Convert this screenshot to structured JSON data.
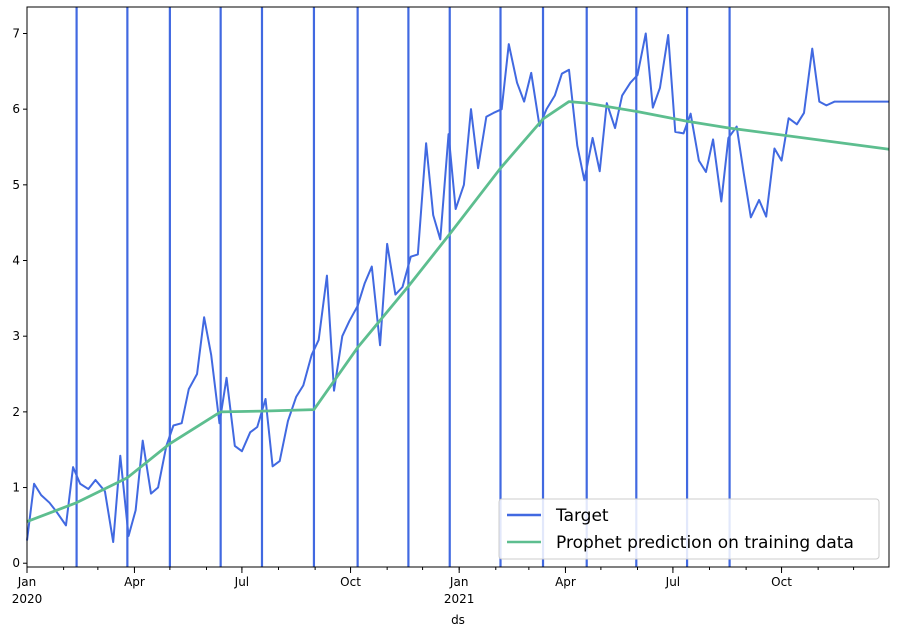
{
  "chart_data": {
    "type": "line",
    "xlabel": "ds",
    "ylabel": "",
    "xlim": [
      "2020-01-01",
      "2021-12-31"
    ],
    "ylim": [
      -0.05,
      7.35
    ],
    "grid": false,
    "legend_position": "bottom-right",
    "y_ticks": [
      0,
      1,
      2,
      3,
      4,
      5,
      6,
      7
    ],
    "x_ticks": [
      {
        "date": "2020-01-01",
        "label": "Jan",
        "sublabel": "2020"
      },
      {
        "date": "2020-04-01",
        "label": "Apr",
        "sublabel": ""
      },
      {
        "date": "2020-07-01",
        "label": "Jul",
        "sublabel": ""
      },
      {
        "date": "2020-10-01",
        "label": "Oct",
        "sublabel": ""
      },
      {
        "date": "2021-01-01",
        "label": "Jan",
        "sublabel": "2021"
      },
      {
        "date": "2021-04-01",
        "label": "Apr",
        "sublabel": ""
      },
      {
        "date": "2021-07-01",
        "label": "Jul",
        "sublabel": ""
      },
      {
        "date": "2021-10-01",
        "label": "Oct",
        "sublabel": ""
      }
    ],
    "changepoints": [
      "2020-02-12",
      "2020-03-26",
      "2020-05-01",
      "2020-06-13",
      "2020-07-18",
      "2020-08-31",
      "2020-10-07",
      "2020-11-19",
      "2020-12-24",
      "2021-02-05",
      "2021-03-13",
      "2021-04-19",
      "2021-05-31",
      "2021-07-13",
      "2021-08-18"
    ],
    "series": [
      {
        "name": "Target",
        "color": "#4169e1",
        "x": [
          "2020-01-01",
          "2020-01-07",
          "2020-01-13",
          "2020-01-20",
          "2020-01-26",
          "2020-02-03",
          "2020-02-09",
          "2020-02-15",
          "2020-02-22",
          "2020-02-28",
          "2020-03-07",
          "2020-03-14",
          "2020-03-20",
          "2020-03-27",
          "2020-04-02",
          "2020-04-08",
          "2020-04-15",
          "2020-04-21",
          "2020-04-28",
          "2020-05-04",
          "2020-05-11",
          "2020-05-17",
          "2020-05-24",
          "2020-05-30",
          "2020-06-05",
          "2020-06-12",
          "2020-06-18",
          "2020-06-25",
          "2020-07-01",
          "2020-07-08",
          "2020-07-14",
          "2020-07-21",
          "2020-07-27",
          "2020-08-02",
          "2020-08-09",
          "2020-08-16",
          "2020-08-22",
          "2020-08-29",
          "2020-09-04",
          "2020-09-11",
          "2020-09-17",
          "2020-09-24",
          "2020-09-30",
          "2020-10-07",
          "2020-10-13",
          "2020-10-19",
          "2020-10-26",
          "2020-11-01",
          "2020-11-08",
          "2020-11-14",
          "2020-11-21",
          "2020-11-27",
          "2020-12-04",
          "2020-12-10",
          "2020-12-16",
          "2020-12-23",
          "2020-12-29",
          "2021-01-05",
          "2021-01-11",
          "2021-01-17",
          "2021-01-24",
          "2021-01-30",
          "2021-02-06",
          "2021-02-12",
          "2021-02-19",
          "2021-02-25",
          "2021-03-03",
          "2021-03-10",
          "2021-03-16",
          "2021-03-23",
          "2021-03-29",
          "2021-04-04",
          "2021-04-11",
          "2021-04-17",
          "2021-04-24",
          "2021-04-30",
          "2021-05-06",
          "2021-05-13",
          "2021-05-19",
          "2021-05-26",
          "2021-06-01",
          "2021-06-08",
          "2021-06-14",
          "2021-06-20",
          "2021-06-27",
          "2021-07-03",
          "2021-07-10",
          "2021-07-16",
          "2021-07-23",
          "2021-07-29",
          "2021-08-04",
          "2021-08-11",
          "2021-08-17",
          "2021-08-24",
          "2021-08-30",
          "2021-09-05",
          "2021-09-12",
          "2021-09-18",
          "2021-09-25",
          "2021-10-01",
          "2021-10-07",
          "2021-10-14",
          "2021-10-20",
          "2021-10-27",
          "2021-11-02",
          "2021-11-08",
          "2021-11-15",
          "2021-11-21",
          "2021-11-28",
          "2021-12-04",
          "2021-12-10",
          "2021-12-17",
          "2021-12-23",
          "2021-12-31"
        ],
        "values": [
          0.3,
          1.05,
          0.9,
          0.8,
          0.68,
          0.5,
          1.27,
          1.05,
          0.98,
          1.1,
          0.95,
          0.28,
          1.42,
          0.36,
          0.7,
          1.62,
          0.92,
          1.0,
          1.55,
          1.82,
          1.85,
          2.3,
          2.5,
          3.25,
          2.75,
          1.85,
          2.45,
          1.55,
          1.48,
          1.73,
          1.8,
          2.17,
          1.28,
          1.35,
          1.88,
          2.2,
          2.35,
          2.75,
          2.95,
          3.8,
          2.28,
          3.0,
          3.2,
          3.4,
          3.7,
          3.92,
          2.88,
          4.22,
          3.55,
          3.65,
          4.05,
          4.08,
          5.55,
          4.6,
          4.28,
          5.67,
          4.68,
          5.0,
          6.0,
          5.22,
          5.9,
          5.95,
          6.0,
          6.86,
          6.35,
          6.1,
          6.48,
          5.78,
          6.0,
          6.18,
          6.47,
          6.52,
          5.52,
          5.06,
          5.62,
          5.18,
          6.08,
          5.75,
          6.18,
          6.35,
          6.45,
          7.0,
          6.02,
          6.28,
          6.98,
          5.7,
          5.68,
          5.94,
          5.32,
          5.17,
          5.6,
          4.78,
          5.62,
          5.77,
          5.15,
          4.57,
          4.8,
          4.58,
          5.48,
          5.32,
          5.88,
          5.8,
          5.95,
          6.8,
          6.1,
          6.05,
          6.1,
          6.1,
          6.1,
          6.1,
          6.1,
          6.1,
          6.1,
          6.1
        ]
      },
      {
        "name": "Prophet prediction on training data",
        "color": "#5dbe8f",
        "x": [
          "2020-01-01",
          "2020-02-12",
          "2020-03-26",
          "2020-05-01",
          "2020-06-13",
          "2020-07-18",
          "2020-08-31",
          "2020-10-07",
          "2020-11-19",
          "2020-12-24",
          "2021-02-05",
          "2021-03-13",
          "2021-04-04",
          "2021-04-19",
          "2021-05-31",
          "2021-07-13",
          "2021-08-18",
          "2021-12-31"
        ],
        "values": [
          0.55,
          0.8,
          1.13,
          1.58,
          2.0,
          2.01,
          2.03,
          2.85,
          3.66,
          4.35,
          5.22,
          5.87,
          6.1,
          6.08,
          5.97,
          5.84,
          5.75,
          5.47
        ]
      }
    ]
  }
}
